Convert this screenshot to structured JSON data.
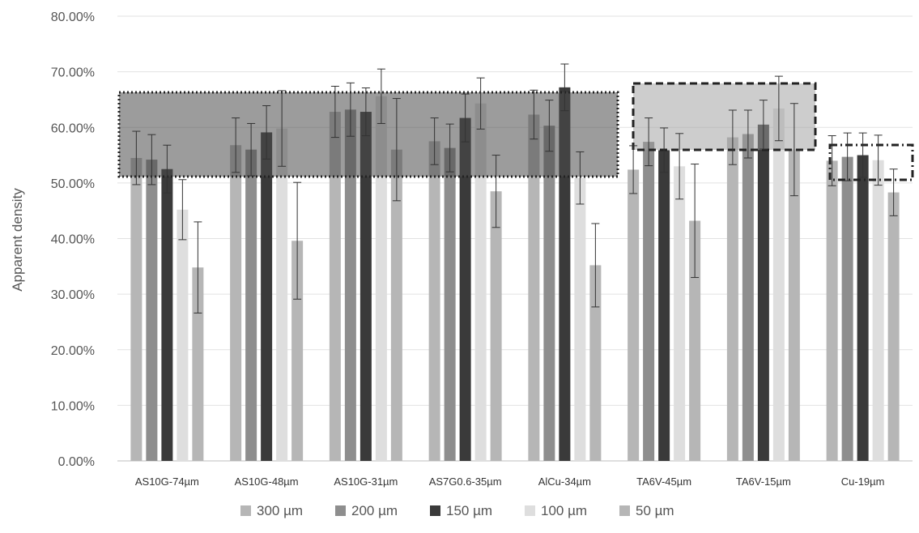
{
  "chart_data": {
    "type": "bar",
    "title": "",
    "xlabel": "",
    "ylabel": "Apparent density",
    "ylim": [
      0,
      80
    ],
    "yticks": [
      "0.00%",
      "10.00%",
      "20.00%",
      "30.00%",
      "40.00%",
      "50.00%",
      "60.00%",
      "70.00%",
      "80.00%"
    ],
    "grid": true,
    "legend_position": "bottom",
    "categories": [
      "AS10G-74µm",
      "AS10G-48µm",
      "AS10G-31µm",
      "AS7G0.6-35µm",
      "AlCu-34µm",
      "TA6V-45µm",
      "TA6V-15µm",
      "Cu-19µm"
    ],
    "series": [
      {
        "name": "300 µm",
        "color": "#b6b6b6",
        "values": [
          54.5,
          56.8,
          62.8,
          57.5,
          62.3,
          52.4,
          58.2,
          54.0
        ],
        "err": [
          4.8,
          4.9,
          4.6,
          4.2,
          4.4,
          4.3,
          4.9,
          4.5
        ]
      },
      {
        "name": "200 µm",
        "color": "#8e8e8e",
        "values": [
          54.2,
          56.0,
          63.2,
          56.3,
          60.3,
          57.4,
          58.8,
          54.7
        ],
        "err": [
          4.5,
          4.7,
          4.8,
          4.3,
          4.6,
          4.3,
          4.3,
          4.3
        ]
      },
      {
        "name": "150 µm",
        "color": "#3a3a3a",
        "values": [
          52.5,
          59.1,
          62.8,
          61.7,
          67.2,
          55.9,
          60.5,
          55.0
        ],
        "err": [
          4.3,
          4.8,
          4.3,
          4.3,
          4.2,
          4.0,
          4.4,
          4.0
        ]
      },
      {
        "name": "100 µm",
        "color": "#dedede",
        "values": [
          45.2,
          59.8,
          65.6,
          64.3,
          50.9,
          53.0,
          63.4,
          54.1
        ],
        "err": [
          5.4,
          6.8,
          4.9,
          4.6,
          4.7,
          5.9,
          5.8,
          4.5
        ]
      },
      {
        "name": "50 µm",
        "color": "#b6b6b6",
        "values": [
          34.8,
          39.6,
          56.0,
          48.5,
          35.2,
          43.2,
          56.0,
          48.3
        ],
        "err": [
          8.2,
          10.5,
          9.2,
          6.5,
          7.5,
          10.2,
          8.3,
          4.2
        ]
      }
    ]
  }
}
